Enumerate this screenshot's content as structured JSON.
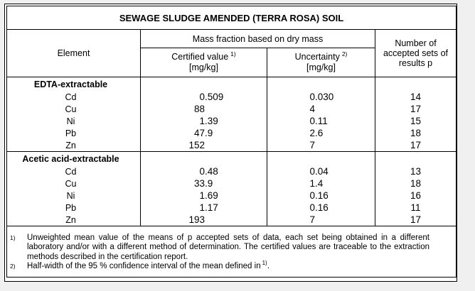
{
  "colors": {
    "page_background": "#f0f0f0",
    "paper_background": "#ffffff",
    "border": "#000000",
    "text": "#000000"
  },
  "title": "SEWAGE SLUDGE AMENDED (TERRA ROSA) SOIL",
  "header": {
    "element": "Element",
    "mass_fraction": "Mass fraction based on dry mass",
    "certified_label": "Certified value",
    "certified_sup": "1)",
    "certified_unit": "[mg/kg]",
    "uncertainty_label": "Uncertainty",
    "uncertainty_sup": "2)",
    "uncertainty_unit": "[mg/kg]",
    "accepted_sets": "Number of accepted sets of results p"
  },
  "chart_data": {
    "type": "table",
    "title": "SEWAGE SLUDGE AMENDED (TERRA ROSA) SOIL",
    "column_group": "Mass fraction based on dry mass",
    "columns": [
      "Element",
      "Certified value 1) [mg/kg]",
      "Uncertainty 2) [mg/kg]",
      "Number of accepted sets of results p"
    ],
    "sections": [
      {
        "name": "EDTA-extractable",
        "rows": [
          {
            "element": "Cd",
            "certified": "0.509",
            "uncertainty": "0.030",
            "p": "14"
          },
          {
            "element": "Cu",
            "certified": "88",
            "uncertainty": "4",
            "p": "17"
          },
          {
            "element": "Ni",
            "certified": "1.39",
            "uncertainty": "0.11",
            "p": "15"
          },
          {
            "element": "Pb",
            "certified": "47.9",
            "uncertainty": "2.6",
            "p": "18"
          },
          {
            "element": "Zn",
            "certified": "152",
            "uncertainty": "7",
            "p": "17"
          }
        ]
      },
      {
        "name": "Acetic acid-extractable",
        "rows": [
          {
            "element": "Cd",
            "certified": "0.48",
            "uncertainty": "0.04",
            "p": "13"
          },
          {
            "element": "Cu",
            "certified": "33.9",
            "uncertainty": "1.4",
            "p": "18"
          },
          {
            "element": "Ni",
            "certified": "1.69",
            "uncertainty": "0.16",
            "p": "16"
          },
          {
            "element": "Pb",
            "certified": "1.17",
            "uncertainty": "0.16",
            "p": "11"
          },
          {
            "element": "Zn",
            "certified": "193",
            "uncertainty": "7",
            "p": "17"
          }
        ]
      }
    ]
  },
  "footnotes": {
    "fn1_marker": "1)",
    "fn1_text": "Unweighted mean value of the means of p accepted sets of data, each set being obtained in a different laboratory and/or with a different method of determination. The certified values are traceable to the extraction methods described in the certification report.",
    "fn2_marker": "2)",
    "fn2_text_before": "Half-width of the 95 % confidence interval of the mean defined in",
    "fn2_sup": "1)",
    "fn2_text_after": "."
  }
}
